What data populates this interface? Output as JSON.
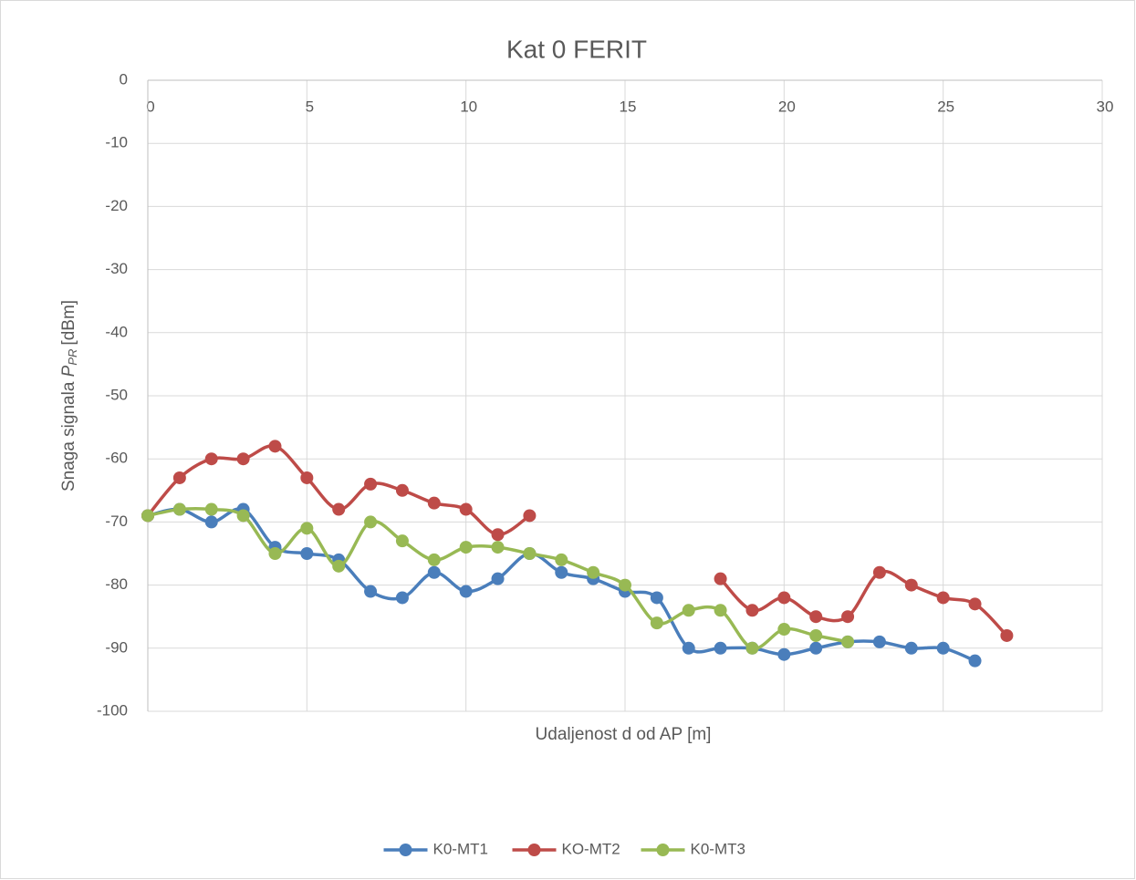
{
  "chart_data": {
    "type": "line",
    "title": "Kat 0 FERIT",
    "xlabel": "Udaljenost d od AP [m]",
    "ylabel": {
      "text": "Snaga signala",
      "symbol": "P",
      "subscript": "PR",
      "unit": "[dBm]"
    },
    "x": [
      0,
      1,
      2,
      3,
      4,
      5,
      6,
      7,
      8,
      9,
      10,
      11,
      12,
      13,
      14,
      15,
      16,
      17,
      18,
      19,
      20,
      21,
      22,
      23,
      24,
      25,
      26,
      27
    ],
    "series": [
      {
        "name": "K0-MT1",
        "color": "#4a7ebb",
        "values": [
          -69,
          -68,
          -70,
          -68,
          -74,
          -75,
          -76,
          -81,
          -82,
          -78,
          -81,
          -79,
          -75,
          -78,
          -79,
          -81,
          -82,
          -90,
          -90,
          -90,
          -91,
          -90,
          -89,
          -89,
          -90,
          -90,
          -92,
          null
        ]
      },
      {
        "name": "KO-MT2",
        "color": "#be4b48",
        "values": [
          -69,
          -63,
          -60,
          -60,
          -58,
          -63,
          -68,
          -64,
          -65,
          -67,
          -68,
          -72,
          -69,
          null,
          null,
          null,
          null,
          null,
          -79,
          -84,
          -82,
          -85,
          -85,
          -78,
          -80,
          -82,
          -83,
          -88
        ]
      },
      {
        "name": "K0-MT3",
        "color": "#98b954",
        "values": [
          -69,
          -68,
          -68,
          -69,
          -75,
          -71,
          -77,
          -70,
          -73,
          -76,
          -74,
          -74,
          -75,
          -76,
          -78,
          -80,
          -86,
          -84,
          -84,
          -90,
          -87,
          -88,
          -89,
          null,
          null,
          null,
          null,
          null
        ]
      }
    ],
    "xlim": [
      0,
      30
    ],
    "xticks": [
      0,
      5,
      10,
      15,
      20,
      25,
      30
    ],
    "ylim": [
      -100,
      0
    ],
    "yticks": [
      0,
      -10,
      -20,
      -30,
      -40,
      -50,
      -60,
      -70,
      -80,
      -90,
      -100
    ],
    "grid": true,
    "smooth": true,
    "legend": "bottom"
  }
}
